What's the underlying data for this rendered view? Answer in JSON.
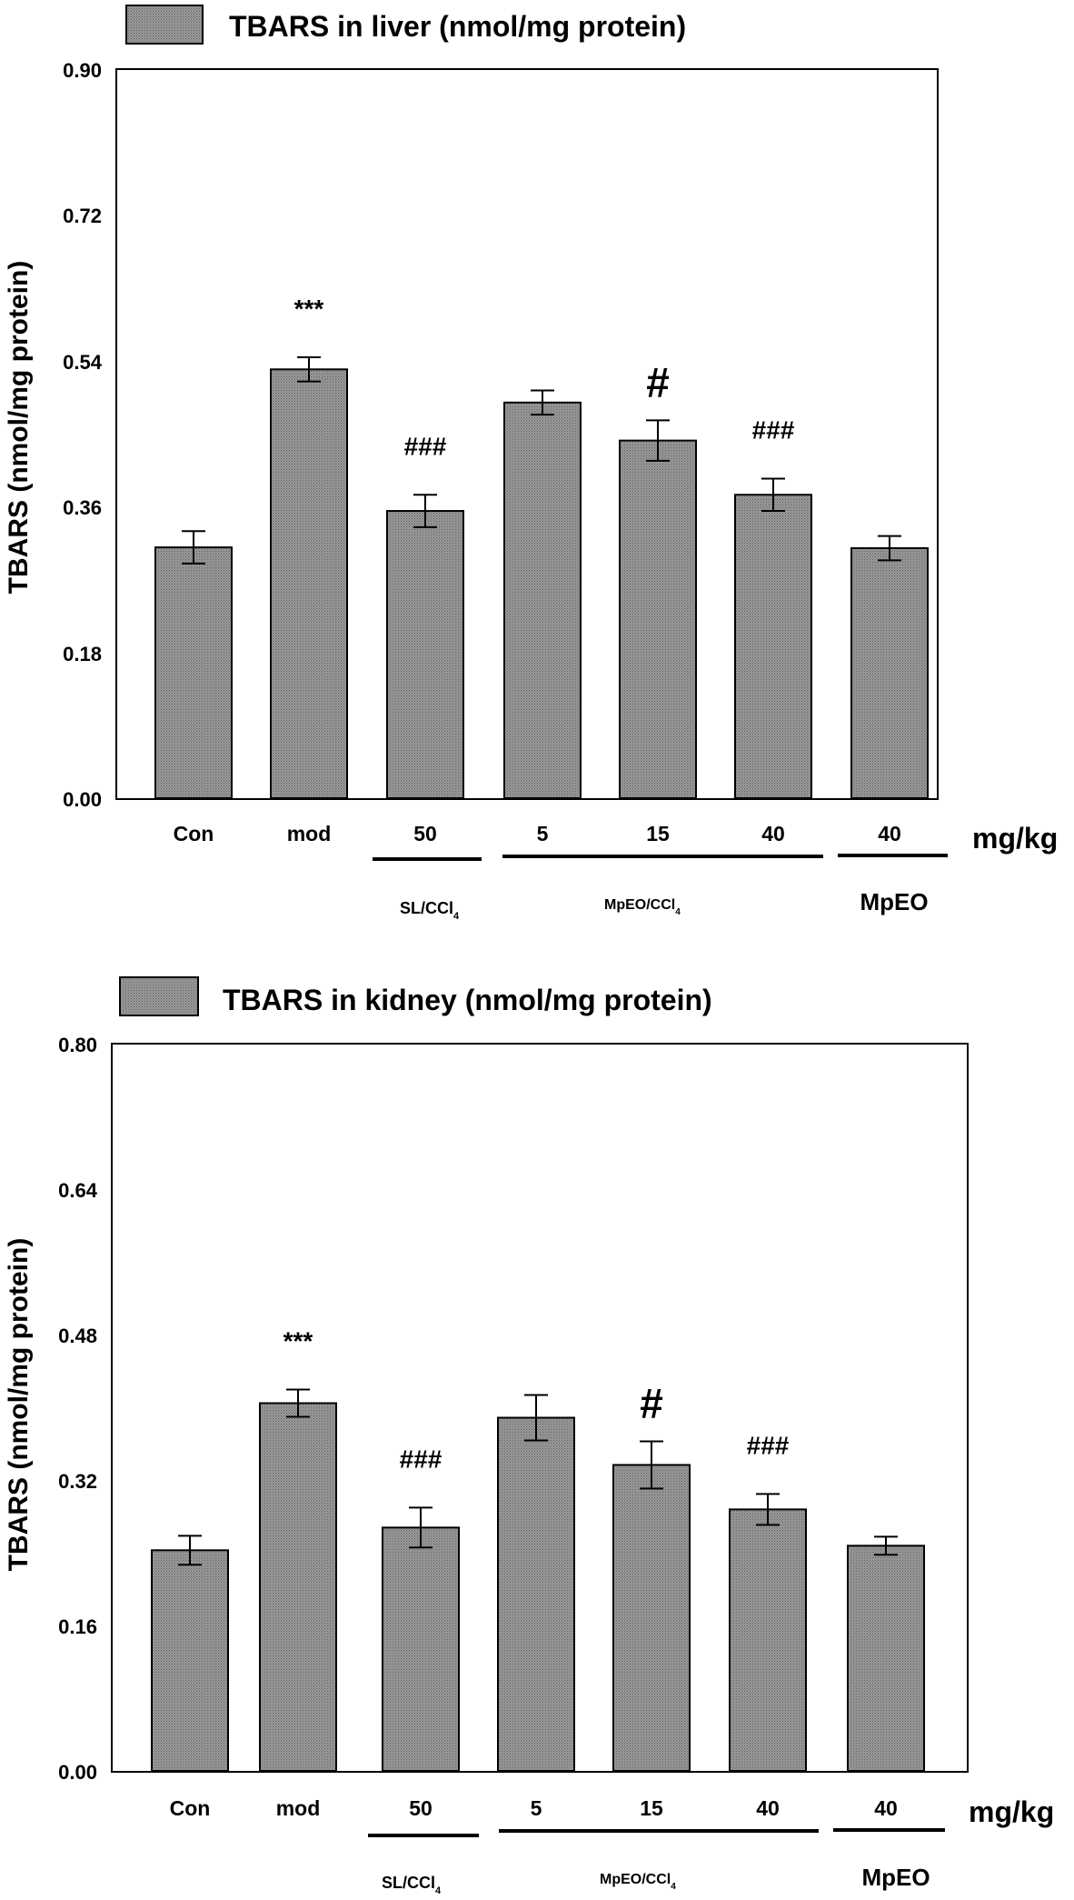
{
  "colors": {
    "bar_fill": "#8f8f8f",
    "bar_stroke": "#000000",
    "background": "#ffffff"
  },
  "chart_data": [
    {
      "type": "bar",
      "title": "TBARS in liver (nmol/mg protein)",
      "ylabel": "TBARS (nmol/mg protein)",
      "unit_label": "mg/kg",
      "ylim": [
        0,
        0.9
      ],
      "yticks": [
        "0.00",
        "0.18",
        "0.36",
        "0.54",
        "0.72",
        "0.90"
      ],
      "grid": false,
      "legend_position": "top-left",
      "categories": [
        "Con",
        "mod",
        "50",
        "5",
        "15",
        "40",
        "40"
      ],
      "values": [
        0.31,
        0.53,
        0.355,
        0.489,
        0.442,
        0.375,
        0.309
      ],
      "errors": [
        0.02,
        0.015,
        0.02,
        0.015,
        0.025,
        0.02,
        0.015
      ],
      "annotations": [
        "",
        "***",
        "###",
        "",
        "#",
        "###",
        ""
      ],
      "group_labels": [
        "SL/CCl4",
        "MpEO/CCl4",
        "MpEO"
      ]
    },
    {
      "type": "bar",
      "title": "TBARS in kidney (nmol/mg protein)",
      "ylabel": "TBARS (nmol/mg protein)",
      "unit_label": "mg/kg",
      "ylim": [
        0,
        0.8
      ],
      "yticks": [
        "0.00",
        "0.16",
        "0.32",
        "0.48",
        "0.64",
        "0.80"
      ],
      "grid": false,
      "legend_position": "top-left",
      "categories": [
        "Con",
        "mod",
        "50",
        "5",
        "15",
        "40",
        "40"
      ],
      "values": [
        0.243,
        0.405,
        0.268,
        0.389,
        0.337,
        0.288,
        0.248
      ],
      "errors": [
        0.016,
        0.015,
        0.022,
        0.025,
        0.026,
        0.017,
        0.01
      ],
      "annotations": [
        "",
        "***",
        "###",
        "",
        "#",
        "###",
        ""
      ],
      "group_labels": [
        "SL/CCl4",
        "MpEO/CCl4",
        "MpEO"
      ]
    }
  ]
}
